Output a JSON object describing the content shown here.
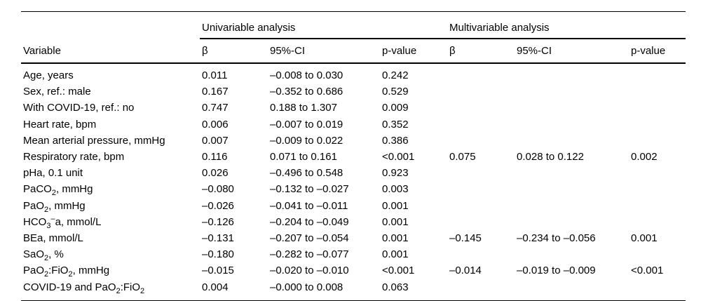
{
  "table": {
    "group_headers": {
      "univariable": "Univariable analysis",
      "multivariable": "Multivariable analysis"
    },
    "col_headers": {
      "variable": "Variable",
      "beta": "β",
      "ci": "95%-CI",
      "p": "p-value"
    },
    "rows": [
      {
        "variable": "Age, years",
        "uni": {
          "beta": "0.011",
          "ci": "–0.008 to 0.030",
          "p": "0.242"
        },
        "multi": {
          "beta": "",
          "ci": "",
          "p": ""
        }
      },
      {
        "variable": "Sex, ref.: male",
        "uni": {
          "beta": "0.167",
          "ci": "–0.352 to 0.686",
          "p": "0.529"
        },
        "multi": {
          "beta": "",
          "ci": "",
          "p": ""
        }
      },
      {
        "variable": "With COVID-19, ref.: no",
        "uni": {
          "beta": "0.747",
          "ci": "0.188 to 1.307",
          "p": "0.009"
        },
        "multi": {
          "beta": "",
          "ci": "",
          "p": ""
        }
      },
      {
        "variable": "Heart rate, bpm",
        "uni": {
          "beta": "0.006",
          "ci": "–0.007 to 0.019",
          "p": "0.352"
        },
        "multi": {
          "beta": "",
          "ci": "",
          "p": ""
        }
      },
      {
        "variable": "Mean arterial pressure, mmHg",
        "uni": {
          "beta": "0.007",
          "ci": "–0.009 to 0.022",
          "p": "0.386"
        },
        "multi": {
          "beta": "",
          "ci": "",
          "p": ""
        }
      },
      {
        "variable": "Respiratory rate, bpm",
        "uni": {
          "beta": "0.116",
          "ci": "0.071 to 0.161",
          "p": "<0.001"
        },
        "multi": {
          "beta": "0.075",
          "ci": "0.028 to 0.122",
          "p": "0.002"
        }
      },
      {
        "variable": "pHa, 0.1 unit",
        "uni": {
          "beta": "0.026",
          "ci": "–0.496 to 0.548",
          "p": "0.923"
        },
        "multi": {
          "beta": "",
          "ci": "",
          "p": ""
        }
      },
      {
        "variable": "PaCO~2~, mmHg",
        "uni": {
          "beta": "–0.080",
          "ci": "–0.132 to –0.027",
          "p": "0.003"
        },
        "multi": {
          "beta": "",
          "ci": "",
          "p": ""
        }
      },
      {
        "variable": "PaO~2~, mmHg",
        "uni": {
          "beta": "–0.026",
          "ci": "–0.041 to –0.011",
          "p": "0.001"
        },
        "multi": {
          "beta": "",
          "ci": "",
          "p": ""
        }
      },
      {
        "variable": "HCO~3~^–^a, mmol/L",
        "uni": {
          "beta": "–0.126",
          "ci": "–0.204 to –0.049",
          "p": "0.001"
        },
        "multi": {
          "beta": "",
          "ci": "",
          "p": ""
        }
      },
      {
        "variable": "BEa, mmol/L",
        "uni": {
          "beta": "–0.131",
          "ci": "–0.207 to –0.054",
          "p": "0.001"
        },
        "multi": {
          "beta": "–0.145",
          "ci": "–0.234 to –0.056",
          "p": "0.001"
        }
      },
      {
        "variable": "SaO~2~, %",
        "uni": {
          "beta": "–0.180",
          "ci": "–0.282 to –0.077",
          "p": "0.001"
        },
        "multi": {
          "beta": "",
          "ci": "",
          "p": ""
        }
      },
      {
        "variable": "PaO~2~:FiO~2~, mmHg",
        "uni": {
          "beta": "–0.015",
          "ci": "–0.020 to –0.010",
          "p": "<0.001"
        },
        "multi": {
          "beta": "–0.014",
          "ci": "–0.019 to –0.009",
          "p": "<0.001"
        }
      },
      {
        "variable": "COVID-19 and PaO~2~:FiO~2~",
        "uni": {
          "beta": "0.004",
          "ci": "–0.000 to 0.008",
          "p": "0.063"
        },
        "multi": {
          "beta": "",
          "ci": "",
          "p": ""
        }
      }
    ]
  }
}
